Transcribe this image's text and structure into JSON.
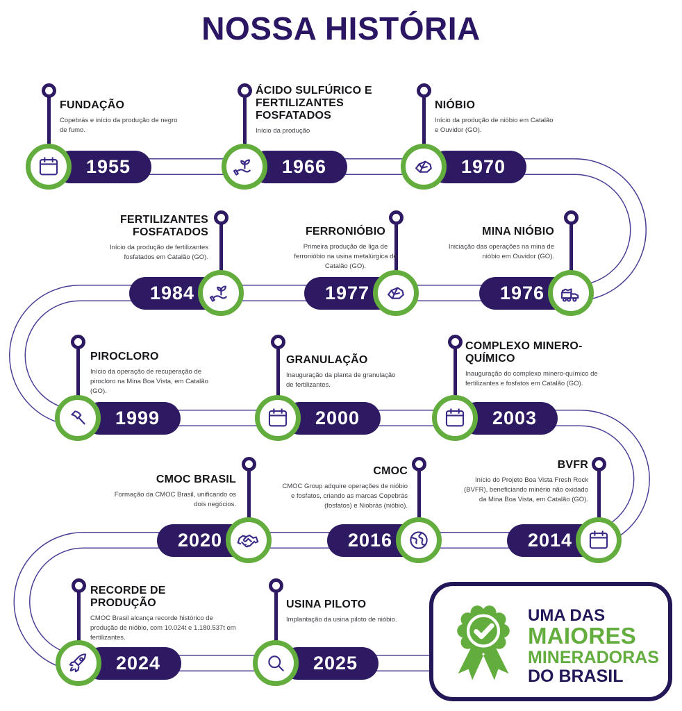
{
  "page": {
    "title": "NOSSA HISTÓRIA"
  },
  "colors": {
    "navy": "#2e1a62",
    "badge_navy": "#241758",
    "track_edge": "#4e3f96",
    "green": "#63ad3e",
    "icon_stroke": "#3c2a87",
    "title_text": "#17151a",
    "desc_text": "#3f3e44",
    "background": "#ffffff"
  },
  "timeline": {
    "items": [
      {
        "year": "1955",
        "title": "FUNDAÇÃO",
        "description": "Copebrás e início da produção de negro de fumo.",
        "icon": "calendar-icon"
      },
      {
        "year": "1966",
        "title": "ÁCIDO SULFÚRICO E FERTILIZANTES FOSFATADOS",
        "description": "Início da produção",
        "icon": "plant-hand-icon"
      },
      {
        "year": "1970",
        "title": "NIÓBIO",
        "description": "Início da produção de nióbio em Catalão e Ouvidor (GO).",
        "icon": "ore-icon"
      },
      {
        "year": "1984",
        "title": "FERTILIZANTES FOSFATADOS",
        "description": "Início da produção de fertilizantes fosfatados em Catalão (GO).",
        "icon": "plant-hand-icon"
      },
      {
        "year": "1977",
        "title": "FERRONIÓBIO",
        "description": "Primeira produção de liga de ferronióbio na usina metalúrgica de Catalão (GO).",
        "icon": "ore-icon"
      },
      {
        "year": "1976",
        "title": "MINA NIÓBIO",
        "description": "Iniciação das operações na mina de nióbio em Ouvidor (GO).",
        "icon": "truck-icon"
      },
      {
        "year": "1999",
        "title": "PIROCLORO",
        "description": "Início da operação de recuperação de pirocloro na Mina Boa Vista, em Catalão (GO).",
        "icon": "hammer-icon"
      },
      {
        "year": "2000",
        "title": "GRANULAÇÃO",
        "description": "Inauguração da planta de granulação de fertilizantes.",
        "icon": "calendar-icon"
      },
      {
        "year": "2003",
        "title": "COMPLEXO MINERO-QUÍMICO",
        "description": "Inauguração do complexo minero-químico de fertilizantes e fosfatos em Catalão (GO).",
        "icon": "calendar-icon"
      },
      {
        "year": "2020",
        "title": "CMOC BRASIL",
        "description": "Formação da CMOC Brasil, unificando os dois negócios.",
        "icon": "handshake-icon"
      },
      {
        "year": "2016",
        "title": "CMOC",
        "description": "CMOC Group adquire operações de nióbio e fosfatos, criando as marcas Copebrás (fosfatos) e Niobrás (nióbio).",
        "icon": "globe-icon"
      },
      {
        "year": "2014",
        "title": "BVFR",
        "description": "Início do Projeto Boa Vista Fresh Rock (BVFR), beneficiando minério não oxidado da Mina Boa Vista, em Catalão (GO).",
        "icon": "calendar-icon"
      },
      {
        "year": "2024",
        "title": "RECORDE DE PRODUÇÃO",
        "description": "CMOC Brasil alcança recorde histórico de produção de nióbio, com 10.024t e 1.180.537t em fertilizantes.",
        "icon": "rocket-icon"
      },
      {
        "year": "2025",
        "title": "USINA PILOTO",
        "description": "Implantação da usina piloto de nióbio.",
        "icon": "search-icon"
      }
    ]
  },
  "badge": {
    "icon": "medal-check-icon",
    "lines": [
      {
        "text": "UMA DAS",
        "color": "navy"
      },
      {
        "text": "MAIORES",
        "color": "green"
      },
      {
        "text": "MINERADORAS",
        "color": "green"
      },
      {
        "text": "DO BRASIL",
        "color": "navy"
      }
    ]
  }
}
